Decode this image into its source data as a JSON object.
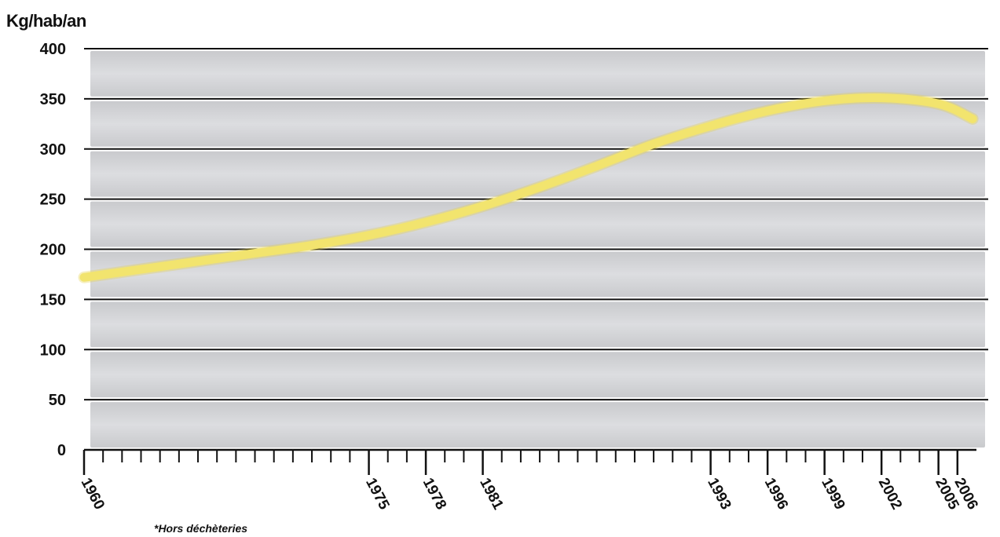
{
  "chart_data": {
    "type": "line",
    "ylabel": "Kg/hab/an",
    "footnote": "*Hors déchèteries",
    "ylim": [
      0,
      400
    ],
    "yticks": [
      0,
      50,
      100,
      150,
      200,
      250,
      300,
      350,
      400
    ],
    "xlim": [
      1960,
      2007
    ],
    "xtick_labels": [
      1960,
      1975,
      1978,
      1981,
      1993,
      1996,
      1999,
      2002,
      2005,
      2006
    ],
    "grid": true,
    "series": [
      {
        "color": "#f2e46e",
        "x": [
          1960,
          1963,
          1966,
          1969,
          1972,
          1975,
          1978,
          1981,
          1984,
          1987,
          1990,
          1993,
          1996,
          1999,
          2002,
          2005,
          2006.8
        ],
        "y": [
          172,
          180,
          188,
          196,
          204,
          214,
          227,
          243,
          262,
          283,
          305,
          323,
          338,
          348,
          351,
          345,
          330
        ]
      }
    ]
  }
}
